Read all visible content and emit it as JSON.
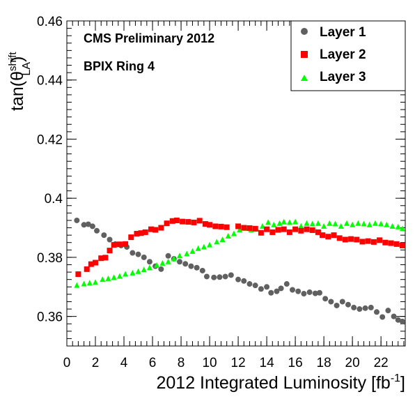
{
  "chart_data": {
    "type": "scatter",
    "annotations": [
      "CMS Preliminary 2012",
      "BPIX Ring 4"
    ],
    "xlabel": {
      "main": "2012 Integrated Luminosity [fb",
      "sup": "-1",
      "close": "]"
    },
    "ylabel": {
      "main": "tan(θ",
      "sup": "shift",
      "sub": "LA",
      "close": ")"
    },
    "xlim": [
      0,
      23.7
    ],
    "ylim": [
      0.35,
      0.46
    ],
    "xticks": [
      0,
      2,
      4,
      6,
      8,
      10,
      12,
      14,
      16,
      18,
      20,
      22
    ],
    "xtick_labels": [
      "0",
      "2",
      "4",
      "6",
      "8",
      "10",
      "12",
      "14",
      "16",
      "18",
      "20",
      "22"
    ],
    "yticks": [
      0.36,
      0.38,
      0.4,
      0.42,
      0.44,
      0.46
    ],
    "ytick_labels": [
      "0.36",
      "0.38",
      "0.4",
      "0.42",
      "0.44",
      "0.46"
    ],
    "legend_position": "top-right",
    "series": [
      {
        "name": "Layer 1",
        "marker": "circle",
        "color": "#606060",
        "x": [
          0.7,
          1.2,
          1.5,
          1.8,
          2.1,
          2.6,
          3.0,
          3.4,
          3.8,
          4.2,
          4.6,
          5.0,
          5.4,
          5.8,
          6.2,
          6.6,
          7.1,
          7.5,
          7.9,
          8.3,
          8.7,
          9.1,
          9.5,
          9.8,
          10.3,
          10.7,
          11.1,
          11.5,
          12.0,
          12.4,
          12.8,
          13.2,
          13.6,
          14.0,
          14.3,
          14.7,
          15.0,
          15.4,
          15.8,
          16.2,
          16.6,
          17.0,
          17.4,
          17.7,
          18.1,
          18.5,
          18.9,
          19.3,
          19.7,
          20.1,
          20.5,
          20.9,
          21.3,
          21.7,
          22.1,
          22.5,
          22.9,
          23.2,
          23.5
        ],
        "y": [
          0.3925,
          0.391,
          0.3912,
          0.3905,
          0.389,
          0.3875,
          0.386,
          0.3845,
          0.384,
          0.3835,
          0.3815,
          0.381,
          0.38,
          0.3785,
          0.377,
          0.376,
          0.3805,
          0.3795,
          0.3785,
          0.3778,
          0.377,
          0.3765,
          0.3755,
          0.3735,
          0.3732,
          0.3733,
          0.3735,
          0.374,
          0.3725,
          0.372,
          0.371,
          0.3705,
          0.3693,
          0.37,
          0.368,
          0.3685,
          0.3695,
          0.371,
          0.369,
          0.3685,
          0.3677,
          0.3682,
          0.3678,
          0.368,
          0.366,
          0.365,
          0.3637,
          0.365,
          0.364,
          0.363,
          0.3625,
          0.3628,
          0.363,
          0.3615,
          0.3598,
          0.362,
          0.36,
          0.3588,
          0.3583
        ]
      },
      {
        "name": "Layer 2",
        "marker": "square",
        "color": "#ff0000",
        "x": [
          0.8,
          1.4,
          1.7,
          2.0,
          2.4,
          2.7,
          3.0,
          3.3,
          3.7,
          4.1,
          4.5,
          4.9,
          5.2,
          5.5,
          5.9,
          6.2,
          6.6,
          7.0,
          7.4,
          7.7,
          8.1,
          8.5,
          8.9,
          9.3,
          9.7,
          10.0,
          10.4,
          10.8,
          11.2,
          12.0,
          12.4,
          12.8,
          13.2,
          13.6,
          14.0,
          14.4,
          14.8,
          15.2,
          15.6,
          16.0,
          16.4,
          16.8,
          17.2,
          17.6,
          17.9,
          18.3,
          18.7,
          19.1,
          19.5,
          19.9,
          20.3,
          20.7,
          21.1,
          21.5,
          21.9,
          22.3,
          22.7,
          23.1,
          23.5
        ],
        "y": [
          0.3743,
          0.376,
          0.3777,
          0.3782,
          0.3797,
          0.3799,
          0.3823,
          0.3842,
          0.3844,
          0.3845,
          0.3868,
          0.388,
          0.3882,
          0.3885,
          0.3895,
          0.3893,
          0.39,
          0.3915,
          0.3923,
          0.3925,
          0.3921,
          0.392,
          0.3918,
          0.3924,
          0.3913,
          0.391,
          0.3905,
          0.3904,
          0.3902,
          0.3905,
          0.39,
          0.3899,
          0.3897,
          0.3883,
          0.3895,
          0.3885,
          0.3893,
          0.3895,
          0.3885,
          0.3895,
          0.389,
          0.3895,
          0.3892,
          0.3885,
          0.3875,
          0.387,
          0.3875,
          0.3865,
          0.386,
          0.3862,
          0.386,
          0.3853,
          0.3855,
          0.3852,
          0.3858,
          0.385,
          0.3848,
          0.3845,
          0.384
        ]
      },
      {
        "name": "Layer 3",
        "marker": "triangle",
        "color": "#00ff00",
        "x": [
          0.7,
          1.2,
          1.6,
          2.0,
          2.5,
          2.9,
          3.3,
          3.7,
          4.1,
          4.6,
          5.0,
          5.4,
          5.8,
          6.3,
          6.7,
          7.1,
          7.5,
          7.9,
          8.4,
          8.8,
          9.2,
          9.6,
          10.0,
          10.5,
          10.9,
          11.3,
          11.7,
          12.1,
          12.5,
          12.9,
          13.3,
          13.7,
          14.1,
          14.5,
          14.9,
          15.2,
          15.6,
          16.0,
          16.4,
          16.8,
          17.2,
          17.6,
          18.0,
          18.4,
          18.8,
          19.2,
          19.6,
          20.0,
          20.4,
          20.8,
          21.2,
          21.6,
          22.0,
          22.4,
          22.8,
          23.2,
          23.5
        ],
        "y": [
          0.3705,
          0.371,
          0.3713,
          0.3715,
          0.3725,
          0.3728,
          0.3732,
          0.3736,
          0.3743,
          0.3747,
          0.3752,
          0.3758,
          0.3765,
          0.3773,
          0.378,
          0.3785,
          0.3795,
          0.3805,
          0.3812,
          0.382,
          0.383,
          0.3835,
          0.3842,
          0.3852,
          0.386,
          0.3872,
          0.388,
          0.3893,
          0.3898,
          0.3893,
          0.3895,
          0.3905,
          0.3918,
          0.391,
          0.3915,
          0.392,
          0.3918,
          0.392,
          0.3905,
          0.3915,
          0.3913,
          0.3915,
          0.3905,
          0.3915,
          0.3913,
          0.3905,
          0.3915,
          0.391,
          0.3915,
          0.3913,
          0.391,
          0.3915,
          0.3913,
          0.391,
          0.3905,
          0.3903,
          0.3897
        ]
      }
    ]
  }
}
